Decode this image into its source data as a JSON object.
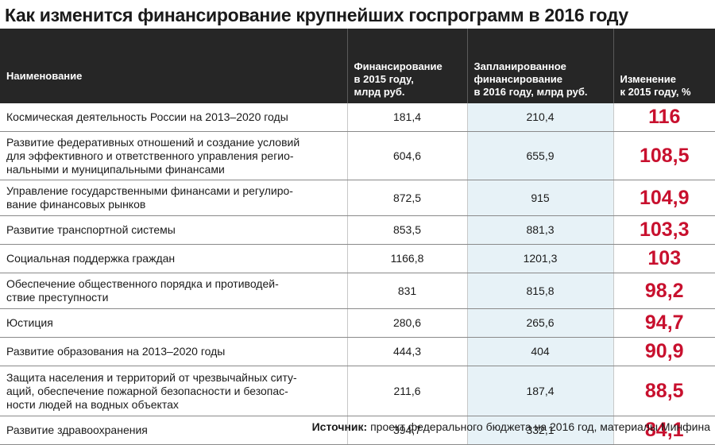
{
  "title": "Как изменится финансирование крупнейших госпрограмм в 2016 году",
  "headers": {
    "name": "Наименование",
    "fin2015": "Финансирование\nв 2015 году,\nмлрд руб.",
    "fin2016": "Запланированное\nфинансирование\nв 2016 году, млрд руб.",
    "change": "Изменение\nк 2015 году, %"
  },
  "rows": [
    {
      "name": "Космическая деятельность России на 2013–2020 годы",
      "fin2015": "181,4",
      "fin2016": "210,4",
      "change": "116"
    },
    {
      "name": "Развитие федеративных отношений и создание условий\nдля эффективного и ответственного управления регио-\nнальными и муниципальными финансами",
      "fin2015": "604,6",
      "fin2016": "655,9",
      "change": "108,5"
    },
    {
      "name": "Управление государственными финансами и регулиро-\nвание финансовых рынков",
      "fin2015": "872,5",
      "fin2016": "915",
      "change": "104,9"
    },
    {
      "name": "Развитие транспортной системы",
      "fin2015": "853,5",
      "fin2016": "881,3",
      "change": "103,3"
    },
    {
      "name": "Социальная поддержка граждан",
      "fin2015": "1166,8",
      "fin2016": "1201,3",
      "change": "103"
    },
    {
      "name": "Обеспечение общественного порядка и противодей-\nствие преступности",
      "fin2015": "831",
      "fin2016": "815,8",
      "change": "98,2"
    },
    {
      "name": "Юстиция",
      "fin2015": "280,6",
      "fin2016": "265,6",
      "change": "94,7"
    },
    {
      "name": "Развитие образования на 2013–2020 годы",
      "fin2015": "444,3",
      "fin2016": "404",
      "change": "90,9"
    },
    {
      "name": "Защита населения и территорий от чрезвычайных ситу-\nаций, обеспечение пожарной безопасности и безопас-\nности людей на водных объектах",
      "fin2015": "211,6",
      "fin2016": "187,4",
      "change": "88,5"
    },
    {
      "name": "Развитие здравоохранения",
      "fin2015": "394,7",
      "fin2016": "332,1",
      "change": "84,1"
    }
  ],
  "source": {
    "label": "Источник:",
    "text": " проект федерального бюджета на 2016 год, материалы Минфина"
  },
  "colors": {
    "header_bg": "#262626",
    "change_text": "#c8102e",
    "shaded_column": "#e7f2f7"
  }
}
